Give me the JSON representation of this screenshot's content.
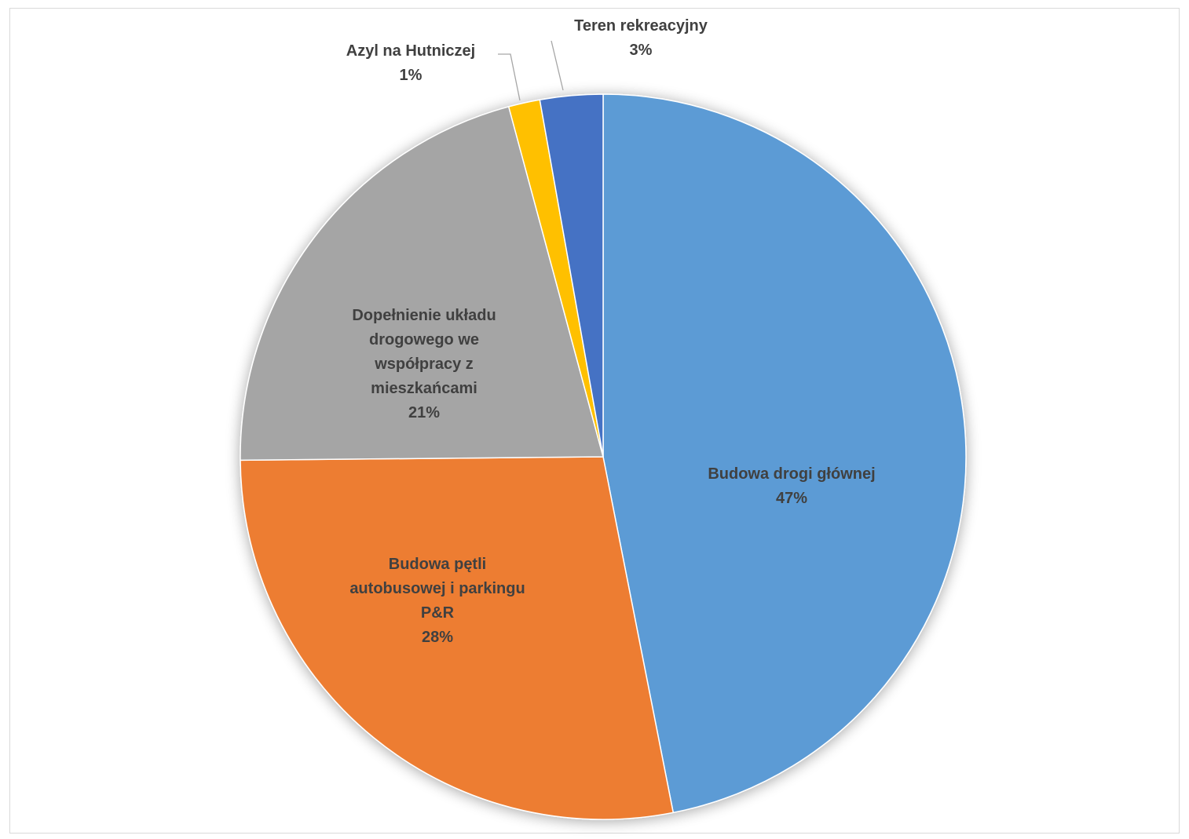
{
  "chart_data": {
    "type": "pie",
    "title": "",
    "slices": [
      {
        "label_lines": [
          "Budowa drogi głównej"
        ],
        "percent_label": "47%",
        "value": 47,
        "color": "#5b9bd5"
      },
      {
        "label_lines": [
          "Budowa pętli",
          "autobusowej i parkingu",
          "P&R"
        ],
        "percent_label": "28%",
        "value": 28,
        "color": "#ed7d31"
      },
      {
        "label_lines": [
          "Dopełnienie układu",
          "drogowego we",
          "współpracy z",
          "mieszkańcami"
        ],
        "percent_label": "21%",
        "value": 21,
        "color": "#a5a5a5"
      },
      {
        "label_lines": [
          "Azyl na Hutniczej"
        ],
        "percent_label": "1%",
        "value": 1.4,
        "color": "#ffc000"
      },
      {
        "label_lines": [
          "Teren rekreacyjny"
        ],
        "percent_label": "3%",
        "value": 2.8,
        "color": "#4472c4"
      }
    ],
    "start_angle": "12 o'clock",
    "direction": "clockwise",
    "legend": "none"
  }
}
